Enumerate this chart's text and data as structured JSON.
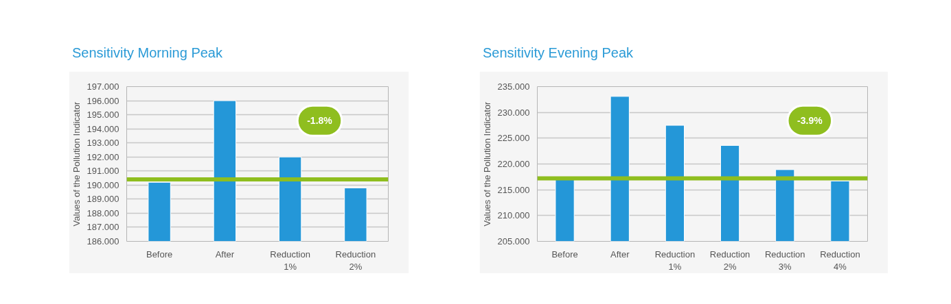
{
  "chart_data": [
    {
      "type": "bar",
      "title": "Sensitivity Morning Peak",
      "ylabel": "Values of the Pollution Indicator",
      "categories": [
        "Before",
        "After",
        "Reduction 1%",
        "Reduction 2%"
      ],
      "series": [
        {
          "color": "#2497d8",
          "values": [
            190.2,
            196.0,
            192.0,
            189.8
          ]
        }
      ],
      "ylim": [
        186,
        197
      ],
      "yticks": [
        {
          "value": 186,
          "label": "186.000"
        },
        {
          "value": 187,
          "label": "187.000"
        },
        {
          "value": 188,
          "label": "188.000"
        },
        {
          "value": 189,
          "label": "189.000"
        },
        {
          "value": 190,
          "label": "190.000"
        },
        {
          "value": 191,
          "label": "191.000"
        },
        {
          "value": 192,
          "label": "192.000"
        },
        {
          "value": 193,
          "label": "193.000"
        },
        {
          "value": 194,
          "label": "194.000"
        },
        {
          "value": 195,
          "label": "195.000"
        },
        {
          "value": 196,
          "label": "196.000"
        },
        {
          "value": 197,
          "label": "197.000"
        }
      ],
      "ref_lines": [
        {
          "axis": "y",
          "value": 190.4,
          "color": "#8fbe1f"
        }
      ],
      "annotations": [
        "-1.8%"
      ],
      "grid": "y"
    },
    {
      "type": "bar",
      "title": "Sensitivity Evening Peak",
      "ylabel": "Values of the Pollution Indicator",
      "categories": [
        "Before",
        "After",
        "Reduction 1%",
        "Reduction 2%",
        "Reduction 3%",
        "Reduction 4%"
      ],
      "series": [
        {
          "color": "#2497d8",
          "values": [
            217.0,
            233.1,
            227.5,
            223.6,
            218.9,
            216.7
          ]
        }
      ],
      "ylim": [
        205,
        235
      ],
      "yticks": [
        {
          "value": 205,
          "label": "205.000"
        },
        {
          "value": 210,
          "label": "210.000"
        },
        {
          "value": 215,
          "label": "215.000"
        },
        {
          "value": 220,
          "label": "220.000"
        },
        {
          "value": 225,
          "label": "225.000"
        },
        {
          "value": 230,
          "label": "230.000"
        },
        {
          "value": 235,
          "label": "235.000"
        }
      ],
      "ref_lines": [
        {
          "axis": "y",
          "value": 217.2,
          "color": "#8fbe1f"
        }
      ],
      "annotations": [
        "-3.9%"
      ],
      "grid": "y"
    }
  ]
}
